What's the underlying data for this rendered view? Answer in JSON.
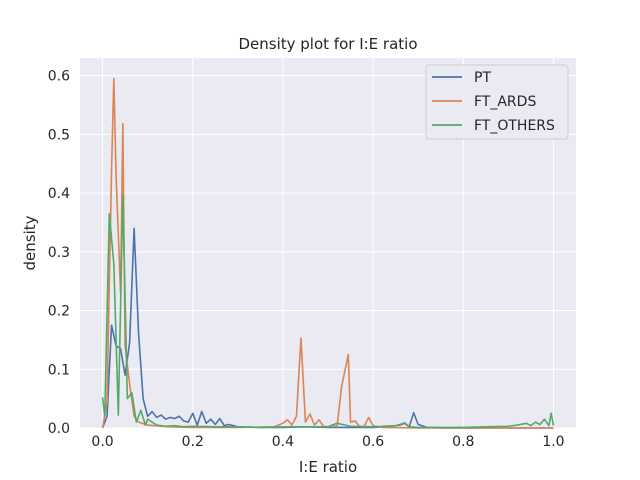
{
  "chart_data": {
    "type": "line",
    "title": "Density plot for I:E ratio",
    "xlabel": "I:E ratio",
    "ylabel": "density",
    "xlim": [
      -0.05,
      1.05
    ],
    "ylim": [
      0,
      0.63
    ],
    "x_ticks": [
      0.0,
      0.2,
      0.4,
      0.6,
      0.8,
      1.0
    ],
    "x_tick_labels": [
      "0.0",
      "0.2",
      "0.4",
      "0.6",
      "0.8",
      "1.0"
    ],
    "y_ticks": [
      0.0,
      0.1,
      0.2,
      0.3,
      0.4,
      0.5,
      0.6
    ],
    "y_tick_labels": [
      "0.0",
      "0.1",
      "0.2",
      "0.3",
      "0.4",
      "0.5",
      "0.6"
    ],
    "grid": true,
    "legend_position": "top-right",
    "series": [
      {
        "name": "PT",
        "color": "#4c72b0",
        "points": [
          [
            0.0,
            0.0
          ],
          [
            0.01,
            0.02
          ],
          [
            0.02,
            0.175
          ],
          [
            0.03,
            0.14
          ],
          [
            0.04,
            0.135
          ],
          [
            0.05,
            0.09
          ],
          [
            0.06,
            0.145
          ],
          [
            0.07,
            0.34
          ],
          [
            0.08,
            0.16
          ],
          [
            0.09,
            0.05
          ],
          [
            0.1,
            0.02
          ],
          [
            0.11,
            0.028
          ],
          [
            0.12,
            0.018
          ],
          [
            0.13,
            0.022
          ],
          [
            0.14,
            0.015
          ],
          [
            0.15,
            0.018
          ],
          [
            0.16,
            0.016
          ],
          [
            0.17,
            0.02
          ],
          [
            0.18,
            0.012
          ],
          [
            0.19,
            0.01
          ],
          [
            0.2,
            0.025
          ],
          [
            0.21,
            0.005
          ],
          [
            0.22,
            0.028
          ],
          [
            0.23,
            0.008
          ],
          [
            0.24,
            0.015
          ],
          [
            0.25,
            0.006
          ],
          [
            0.26,
            0.016
          ],
          [
            0.27,
            0.004
          ],
          [
            0.28,
            0.006
          ],
          [
            0.3,
            0.002
          ],
          [
            0.35,
            0.001
          ],
          [
            0.4,
            0.001
          ],
          [
            0.45,
            0.002
          ],
          [
            0.5,
            0.001
          ],
          [
            0.55,
            0.001
          ],
          [
            0.6,
            0.001
          ],
          [
            0.64,
            0.003
          ],
          [
            0.66,
            0.005
          ],
          [
            0.67,
            0.008
          ],
          [
            0.68,
            0.002
          ],
          [
            0.69,
            0.026
          ],
          [
            0.7,
            0.006
          ],
          [
            0.72,
            0.001
          ],
          [
            0.75,
            0.0
          ],
          [
            0.8,
            0.0
          ],
          [
            0.9,
            0.0
          ],
          [
            1.0,
            0.0
          ]
        ]
      },
      {
        "name": "FT_ARDS",
        "color": "#dd8452",
        "points": [
          [
            0.0,
            0.0
          ],
          [
            0.01,
            0.045
          ],
          [
            0.02,
            0.44
          ],
          [
            0.025,
            0.595
          ],
          [
            0.03,
            0.43
          ],
          [
            0.04,
            0.23
          ],
          [
            0.045,
            0.518
          ],
          [
            0.05,
            0.14
          ],
          [
            0.06,
            0.075
          ],
          [
            0.07,
            0.02
          ],
          [
            0.08,
            0.01
          ],
          [
            0.1,
            0.005
          ],
          [
            0.15,
            0.002
          ],
          [
            0.2,
            0.001
          ],
          [
            0.3,
            0.001
          ],
          [
            0.38,
            0.002
          ],
          [
            0.4,
            0.008
          ],
          [
            0.41,
            0.014
          ],
          [
            0.42,
            0.005
          ],
          [
            0.43,
            0.02
          ],
          [
            0.44,
            0.153
          ],
          [
            0.45,
            0.01
          ],
          [
            0.46,
            0.024
          ],
          [
            0.47,
            0.005
          ],
          [
            0.48,
            0.014
          ],
          [
            0.49,
            0.003
          ],
          [
            0.5,
            0.002
          ],
          [
            0.51,
            0.005
          ],
          [
            0.52,
            0.002
          ],
          [
            0.53,
            0.07
          ],
          [
            0.545,
            0.125
          ],
          [
            0.55,
            0.01
          ],
          [
            0.56,
            0.012
          ],
          [
            0.57,
            0.003
          ],
          [
            0.58,
            0.002
          ],
          [
            0.59,
            0.018
          ],
          [
            0.6,
            0.004
          ],
          [
            0.62,
            0.001
          ],
          [
            0.7,
            0.0
          ],
          [
            0.8,
            0.0
          ],
          [
            0.9,
            0.0
          ],
          [
            1.0,
            0.0
          ]
        ]
      },
      {
        "name": "FT_OTHERS",
        "color": "#55a868",
        "points": [
          [
            0.0,
            0.052
          ],
          [
            0.005,
            0.02
          ],
          [
            0.015,
            0.365
          ],
          [
            0.025,
            0.28
          ],
          [
            0.035,
            0.022
          ],
          [
            0.045,
            0.395
          ],
          [
            0.055,
            0.05
          ],
          [
            0.065,
            0.06
          ],
          [
            0.075,
            0.01
          ],
          [
            0.085,
            0.03
          ],
          [
            0.095,
            0.005
          ],
          [
            0.1,
            0.015
          ],
          [
            0.11,
            0.01
          ],
          [
            0.12,
            0.005
          ],
          [
            0.14,
            0.003
          ],
          [
            0.16,
            0.004
          ],
          [
            0.18,
            0.002
          ],
          [
            0.2,
            0.003
          ],
          [
            0.25,
            0.002
          ],
          [
            0.3,
            0.002
          ],
          [
            0.35,
            0.001
          ],
          [
            0.4,
            0.002
          ],
          [
            0.45,
            0.002
          ],
          [
            0.5,
            0.002
          ],
          [
            0.52,
            0.008
          ],
          [
            0.55,
            0.003
          ],
          [
            0.6,
            0.002
          ],
          [
            0.65,
            0.004
          ],
          [
            0.66,
            0.006
          ],
          [
            0.67,
            0.009
          ],
          [
            0.68,
            0.002
          ],
          [
            0.7,
            0.001
          ],
          [
            0.75,
            0.001
          ],
          [
            0.8,
            0.001
          ],
          [
            0.85,
            0.002
          ],
          [
            0.9,
            0.003
          ],
          [
            0.92,
            0.005
          ],
          [
            0.94,
            0.008
          ],
          [
            0.95,
            0.004
          ],
          [
            0.96,
            0.01
          ],
          [
            0.97,
            0.006
          ],
          [
            0.98,
            0.015
          ],
          [
            0.99,
            0.004
          ],
          [
            0.995,
            0.025
          ],
          [
            1.0,
            0.004
          ]
        ]
      }
    ]
  }
}
